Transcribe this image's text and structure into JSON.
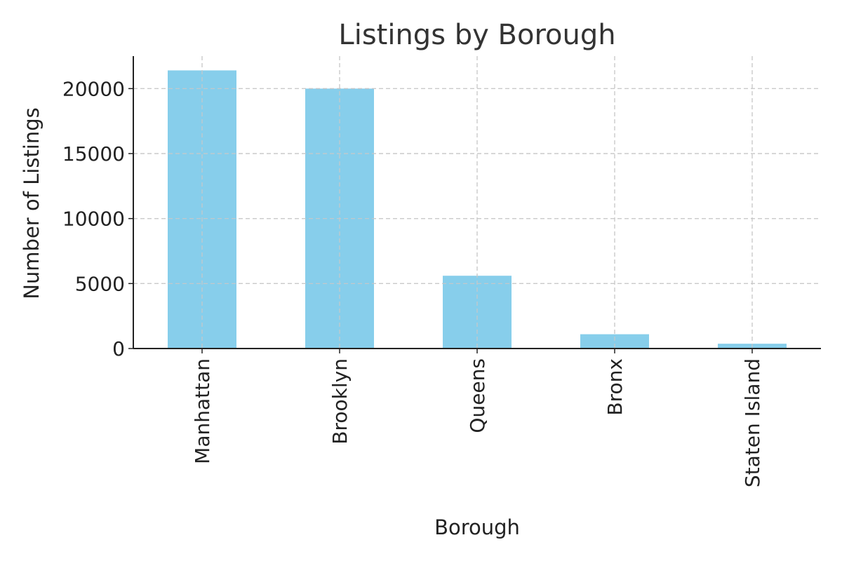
{
  "chart_data": {
    "type": "bar",
    "title": "Listings by Borough",
    "xlabel": "Borough",
    "ylabel": "Number of Listings",
    "categories": [
      "Manhattan",
      "Brooklyn",
      "Queens",
      "Bronx",
      "Staten Island"
    ],
    "values": [
      21400,
      20000,
      5600,
      1100,
      370
    ],
    "ylim": [
      0,
      22500
    ],
    "yticks": [
      0,
      5000,
      10000,
      15000,
      20000
    ],
    "ytick_labels": [
      "0",
      "5000",
      "10000",
      "15000",
      "20000"
    ],
    "grid": true,
    "colors": {
      "bar": "#87CEEB"
    }
  }
}
